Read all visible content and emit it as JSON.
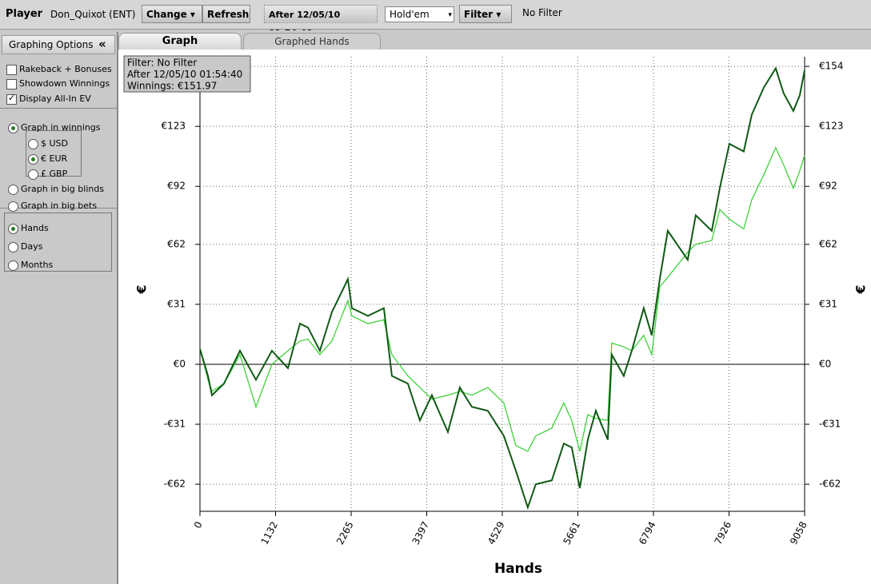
{
  "toolbar": {
    "player_label": "Player",
    "player": "Don_Quixot (ENT)",
    "change": "Change",
    "refresh": "Refresh",
    "date_filter": "After 12/05/10 01:54:40",
    "game": "Hold'em",
    "filter": "Filter",
    "filter_status": "No Filter"
  },
  "sidebar": {
    "title": "Graphing Options",
    "collapse": "«",
    "options": [
      {
        "kind": "checkbox",
        "label": "Rakeback + Bonuses",
        "checked": false
      },
      {
        "kind": "checkbox",
        "label": "Showdown Winnings",
        "checked": false
      },
      {
        "kind": "checkbox",
        "label": "Display All-In EV",
        "checked": true
      },
      {
        "kind": "radio",
        "label": "Graph in winnings",
        "checked": true
      },
      {
        "kind": "radio",
        "label": "$ USD",
        "checked": false
      },
      {
        "kind": "radio",
        "label": "€ EUR",
        "checked": true
      },
      {
        "kind": "radio",
        "label": "£ GBP",
        "checked": false
      },
      {
        "kind": "radio",
        "label": "Graph in big blinds",
        "checked": false
      },
      {
        "kind": "radio",
        "label": "Graph in big bets",
        "checked": false
      },
      {
        "kind": "radio",
        "label": "Hands",
        "checked": true
      },
      {
        "kind": "radio",
        "label": "Days",
        "checked": false
      },
      {
        "kind": "radio",
        "label": "Months",
        "checked": false
      }
    ]
  },
  "tabs": [
    "Graph",
    "Graphed Hands"
  ],
  "chart_data": {
    "type": "line",
    "annotation": [
      "Filter: No Filter",
      "After 12/05/10 01:54:40",
      "Winnings: €151.97"
    ],
    "x_label": "Hands",
    "y_label": "€",
    "y2_label": "€",
    "x": [
      0,
      120,
      180,
      360,
      599,
      839,
      1078,
      1318,
      1498,
      1618,
      1797,
      1977,
      2216,
      2276,
      2516,
      2755,
      2875,
      3115,
      3295,
      3474,
      3714,
      3893,
      4073,
      4312,
      4552,
      4732,
      4911,
      5031,
      5271,
      5450,
      5570,
      5690,
      5810,
      5930,
      6109,
      6169,
      6349,
      6469,
      6648,
      6768,
      6888,
      7008,
      7307,
      7427,
      7667,
      7787,
      7931,
      8146,
      8266,
      8446,
      8625,
      8745,
      8889,
      8985,
      9058
    ],
    "series": [
      {
        "color": "#0f5a14",
        "values": [
          8,
          -6,
          -16,
          -10,
          7,
          -8,
          7,
          -2,
          21,
          19,
          7,
          27,
          44,
          29,
          25,
          29,
          -6,
          -10,
          -29,
          -16,
          -35,
          -12,
          -22,
          -24,
          -37,
          -55,
          -74,
          -62,
          -60,
          -41,
          -43,
          -64,
          -39,
          -24,
          -39,
          5,
          -6,
          7,
          29,
          15,
          44,
          69,
          54,
          77,
          69,
          91,
          114,
          110,
          129,
          143,
          153,
          140,
          131,
          139,
          152
        ]
      },
      {
        "color": "#3fd13a",
        "values": [
          8,
          -8,
          -14,
          -10,
          5,
          -22,
          0,
          7,
          12,
          13,
          5,
          12,
          33,
          25,
          21,
          23,
          5,
          -6,
          -12,
          -18,
          -16,
          -14,
          -16,
          -12,
          -20,
          -42,
          -45,
          -37,
          -33,
          -20,
          -29,
          -45,
          -26,
          -28,
          -29,
          11,
          9,
          7,
          15,
          5,
          40,
          45,
          58,
          62,
          64,
          80,
          75,
          70,
          85,
          98,
          112,
          103,
          91,
          100,
          108
        ]
      }
    ],
    "xlim": [
      0,
      9058
    ],
    "xticks": [
      0,
      1132,
      2265,
      3397,
      4529,
      5661,
      6794,
      7926,
      9058
    ],
    "ylim": [
      -76,
      159
    ],
    "yticks": [
      {
        "value": -62,
        "label": "-€62"
      },
      {
        "value": -31,
        "label": "-€31"
      },
      {
        "value": 0,
        "label": "€0"
      },
      {
        "value": 31,
        "label": "€31"
      },
      {
        "value": 62,
        "label": "€62"
      },
      {
        "value": 92,
        "label": "€92"
      },
      {
        "value": 123,
        "label": "€123"
      },
      {
        "value": 154,
        "label": "€154"
      }
    ],
    "grid": true
  }
}
